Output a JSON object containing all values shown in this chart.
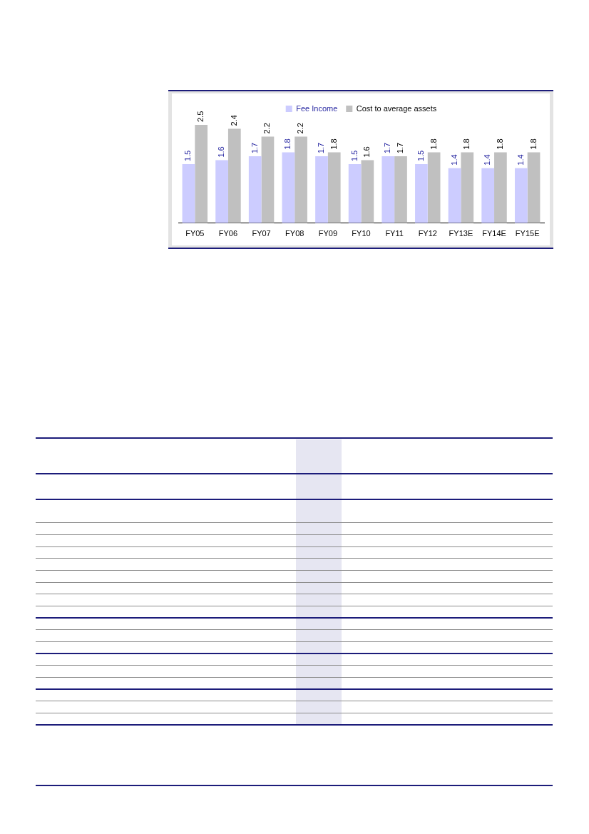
{
  "chart_data": {
    "type": "bar",
    "categories": [
      "FY05",
      "FY06",
      "FY07",
      "FY08",
      "FY09",
      "FY10",
      "FY11",
      "FY12",
      "FY13E",
      "FY14E",
      "FY15E"
    ],
    "series": [
      {
        "name": "Fee Income",
        "color": "#ccccff",
        "values": [
          1.5,
          1.6,
          1.7,
          1.8,
          1.7,
          1.5,
          1.7,
          1.5,
          1.4,
          1.4,
          1.4
        ]
      },
      {
        "name": "Cost to average assets",
        "color": "#c0c0c0",
        "values": [
          2.5,
          2.4,
          2.2,
          2.2,
          1.8,
          1.6,
          1.7,
          1.8,
          1.8,
          1.8,
          1.8
        ]
      }
    ],
    "data_labels": true,
    "legend": "top",
    "tick_labels": "x"
  }
}
